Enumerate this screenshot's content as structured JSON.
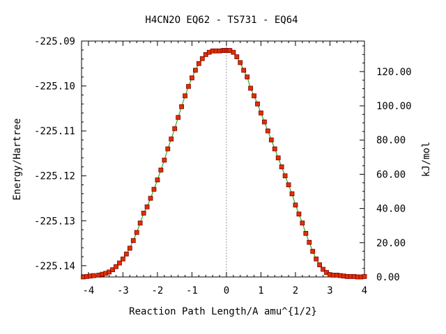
{
  "chart_data": {
    "type": "scatter",
    "title": "H4CN2O   EQ62 - TS731 - EQ64",
    "xlabel": "Reaction Path Length/A amu^{1/2}",
    "ylabel": "Energy/Hartree",
    "y2label": "kJ/mol",
    "xlim": [
      -4.2,
      4.0
    ],
    "ylim": [
      -225.1425,
      -225.09
    ],
    "x_ticks": [
      -4,
      -3,
      -2,
      -1,
      0,
      1,
      2,
      3,
      4
    ],
    "x_tick_labels": [
      "-4",
      "-3",
      "-2",
      "-1",
      "0",
      "1",
      "2",
      "3",
      "4"
    ],
    "y_ticks": [
      -225.09,
      -225.1,
      -225.11,
      -225.12,
      -225.13,
      -225.14
    ],
    "y_tick_labels": [
      "-225.09",
      "-225.10",
      "-225.11",
      "-225.12",
      "-225.13",
      "-225.14"
    ],
    "y2_ticks": [
      0,
      20,
      40,
      60,
      80,
      100,
      120
    ],
    "y2_tick_labels": [
      "0.00",
      "20.00",
      "40.00",
      "60.00",
      "80.00",
      "100.00",
      "120.00"
    ],
    "y2_reference_energy": -225.1425,
    "y2_kj_per_hartree": 2625.5,
    "ts_x": 0,
    "colors": {
      "curve": "#00a000",
      "marker": "#e03000",
      "marker_edge": "#800000",
      "ts_line": "#999999"
    },
    "series": [
      {
        "x": [
          -4.15,
          -4.05,
          -3.95,
          -3.85,
          -3.7,
          -3.6,
          -3.5,
          -3.4,
          -3.3,
          -3.2,
          -3.1,
          -3.0,
          -2.9,
          -2.8,
          -2.7,
          -2.6,
          -2.5,
          -2.4,
          -2.3,
          -2.2,
          -2.1,
          -2.0,
          -1.9,
          -1.8,
          -1.7,
          -1.6,
          -1.5,
          -1.4,
          -1.3,
          -1.2,
          -1.1,
          -1.0,
          -0.9,
          -0.8,
          -0.7,
          -0.6,
          -0.5,
          -0.4,
          -0.3,
          -0.2,
          -0.1,
          -0.05,
          0.0,
          0.05,
          0.1,
          0.2,
          0.3,
          0.4,
          0.5,
          0.6,
          0.7,
          0.8,
          0.9,
          1.0,
          1.1,
          1.2,
          1.3,
          1.4,
          1.5,
          1.6,
          1.7,
          1.8,
          1.9,
          2.0,
          2.1,
          2.2,
          2.3,
          2.4,
          2.5,
          2.6,
          2.7,
          2.8,
          2.9,
          3.0,
          3.1,
          3.2,
          3.3,
          3.4,
          3.5,
          3.6,
          3.7,
          3.8,
          3.9,
          4.0
        ],
        "y": [
          -225.1425,
          -225.1424,
          -225.1423,
          -225.1422,
          -225.1421,
          -225.1419,
          -225.1417,
          -225.1414,
          -225.1409,
          -225.1402,
          -225.1394,
          -225.1385,
          -225.1374,
          -225.1361,
          -225.1344,
          -225.1326,
          -225.1305,
          -225.1283,
          -225.1269,
          -225.125,
          -225.123,
          -225.1209,
          -225.1187,
          -225.1165,
          -225.114,
          -225.1118,
          -225.1095,
          -225.107,
          -225.1046,
          -225.1022,
          -225.1001,
          -225.0982,
          -225.0965,
          -225.095,
          -225.0939,
          -225.093,
          -225.0925,
          -225.0922,
          -225.0922,
          -225.0922,
          -225.0921,
          -225.0921,
          -225.0921,
          -225.0921,
          -225.0921,
          -225.0925,
          -225.0935,
          -225.0948,
          -225.0965,
          -225.098,
          -225.1005,
          -225.1022,
          -225.104,
          -225.106,
          -225.108,
          -225.11,
          -225.112,
          -225.114,
          -225.116,
          -225.118,
          -225.12,
          -225.122,
          -225.124,
          -225.1265,
          -225.1285,
          -225.1305,
          -225.1328,
          -225.1348,
          -225.1368,
          -225.1385,
          -225.1398,
          -225.1408,
          -225.1415,
          -225.142,
          -225.1421,
          -225.1421,
          -225.1422,
          -225.1423,
          -225.1424,
          -225.1424,
          -225.1424,
          -225.1425,
          -225.1425,
          -225.1424
        ]
      }
    ]
  }
}
